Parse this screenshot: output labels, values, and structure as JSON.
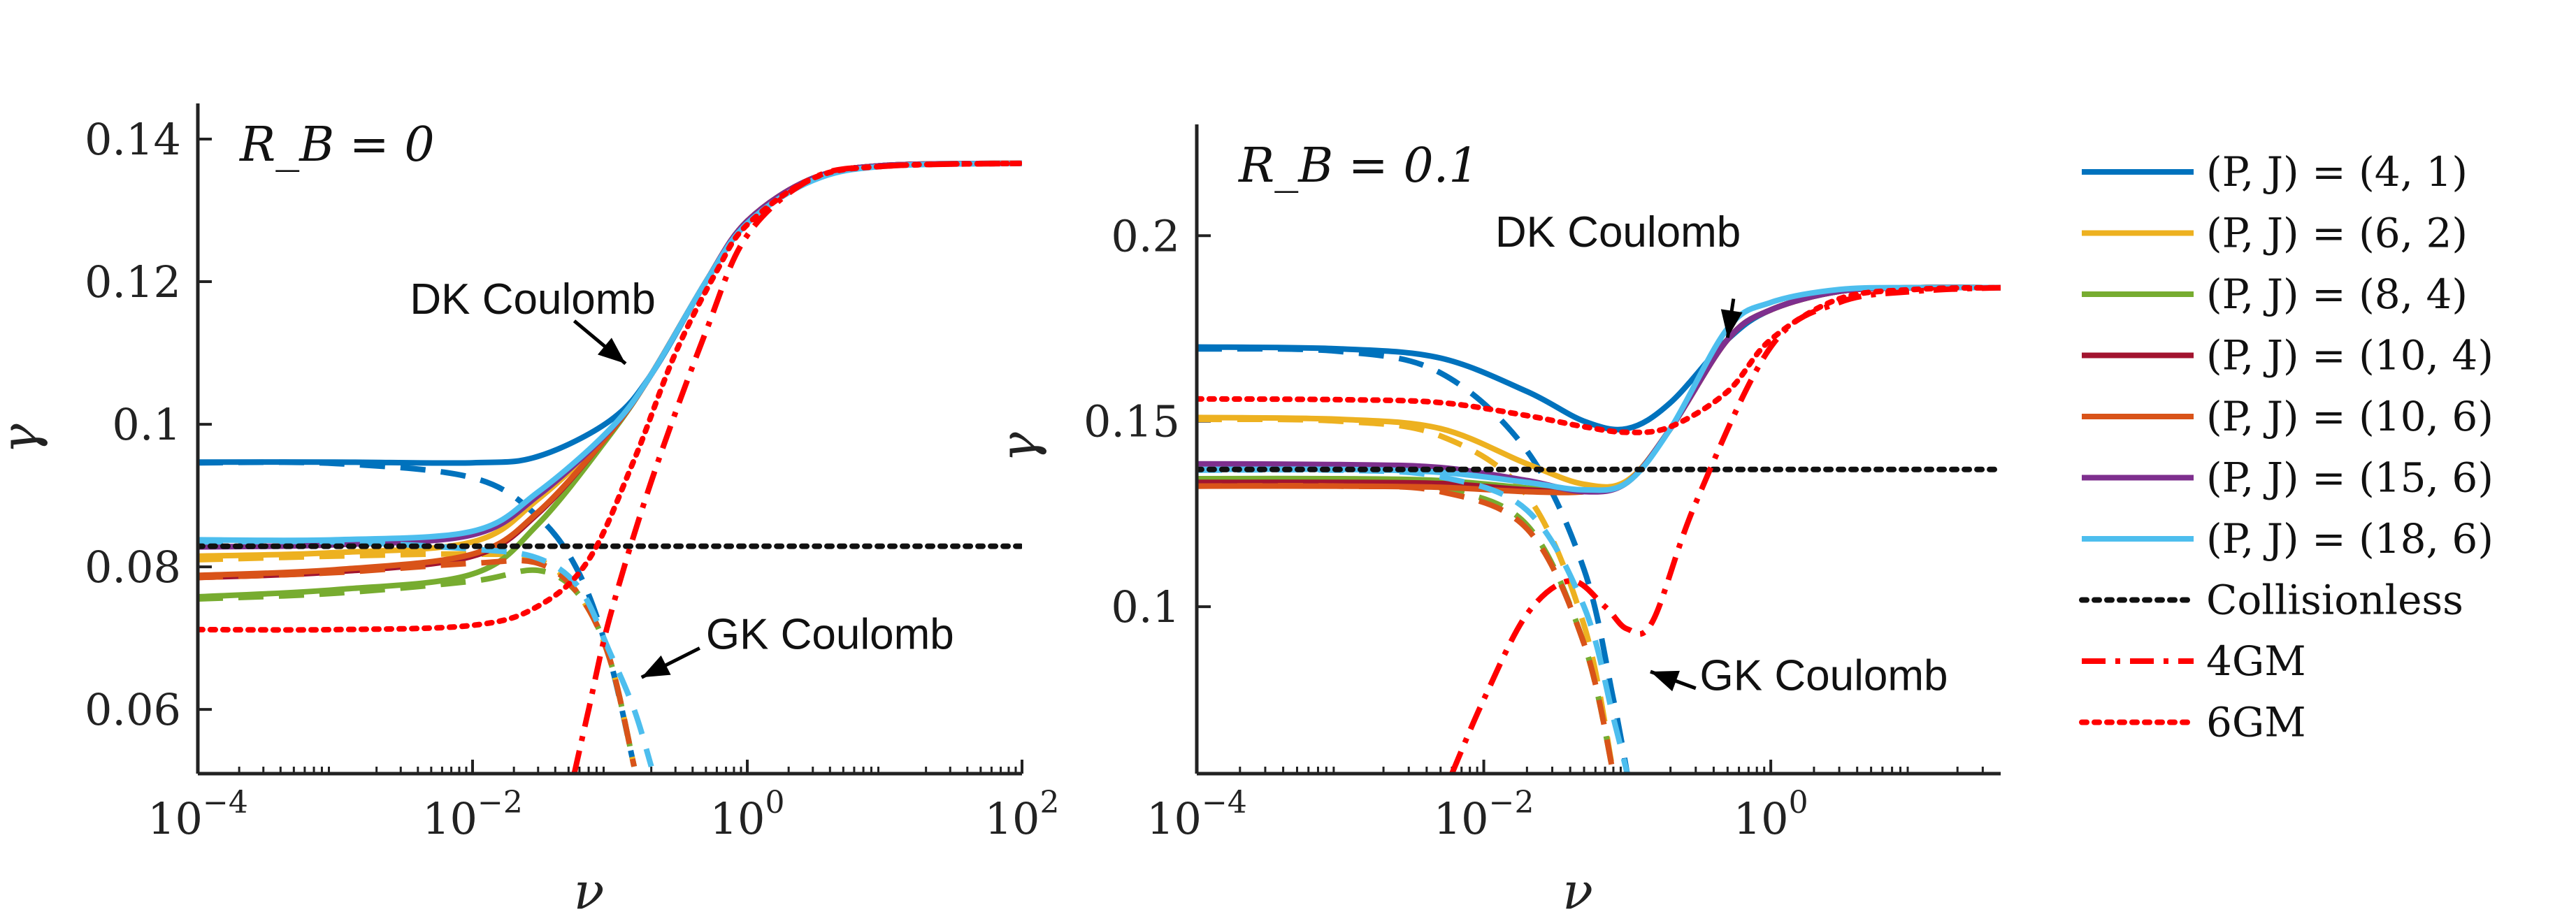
{
  "chart_data": [
    {
      "type": "line",
      "title": "R_B = 0",
      "xlabel": "ν",
      "ylabel": "γ",
      "xscale": "log",
      "xlim": [
        0.0001,
        100
      ],
      "ylim": [
        0.051,
        0.145
      ],
      "xticks": [
        {
          "value": 0.0001,
          "base": "10",
          "exp": "−4"
        },
        {
          "value": 0.01,
          "base": "10",
          "exp": "−2"
        },
        {
          "value": 1,
          "base": "10",
          "exp": "0"
        },
        {
          "value": 100,
          "base": "10",
          "exp": "2"
        }
      ],
      "yticks": [
        {
          "value": 0.06,
          "label": "0.06"
        },
        {
          "value": 0.08,
          "label": "0.08"
        },
        {
          "value": 0.1,
          "label": "0.1"
        },
        {
          "value": 0.12,
          "label": "0.12"
        },
        {
          "value": 0.14,
          "label": "0.14"
        }
      ],
      "annotations": [
        {
          "text": "DK Coulomb",
          "at_x": 0.0035,
          "at_y": 0.1155,
          "arrow_from": [
            0.055,
            0.1145
          ],
          "arrow_to": [
            0.13,
            0.1085
          ]
        },
        {
          "text": "GK Coulomb",
          "at_x": 0.5,
          "at_y": 0.0685,
          "arrow_from": [
            0.45,
            0.0686
          ],
          "arrow_to": [
            0.17,
            0.0645
          ]
        }
      ],
      "series": [
        {
          "name": "(P,J)=(4,1)",
          "color": "#0072BD",
          "style": "solid",
          "x": [
            0.0001,
            0.001,
            0.01,
            0.03,
            0.1,
            0.2,
            0.5,
            1,
            3,
            10,
            100
          ],
          "y": [
            0.0947,
            0.0947,
            0.0946,
            0.0955,
            0.1005,
            0.107,
            0.12,
            0.1285,
            0.1345,
            0.1363,
            0.1366
          ]
        },
        {
          "name": "(P,J)=(4,1) GK",
          "color": "#0072BD",
          "style": "dashed",
          "x": [
            0.0001,
            0.001,
            0.01,
            0.03,
            0.06,
            0.1,
            0.15
          ],
          "y": [
            0.0946,
            0.0945,
            0.0925,
            0.087,
            0.079,
            0.067,
            0.052
          ]
        },
        {
          "name": "(P,J)=(6,2)",
          "color": "#EDB120",
          "style": "solid",
          "x": [
            0.0001,
            0.001,
            0.01,
            0.03,
            0.1,
            0.2,
            0.5,
            1,
            3,
            10,
            100
          ],
          "y": [
            0.0815,
            0.082,
            0.0835,
            0.0895,
            0.099,
            0.107,
            0.12,
            0.1285,
            0.1345,
            0.1363,
            0.1366
          ]
        },
        {
          "name": "(P,J)=(6,2) GK",
          "color": "#EDB120",
          "style": "dashed",
          "x": [
            0.0001,
            0.001,
            0.01,
            0.03,
            0.06,
            0.1,
            0.15
          ],
          "y": [
            0.081,
            0.0815,
            0.0818,
            0.081,
            0.076,
            0.067,
            0.052
          ]
        },
        {
          "name": "(P,J)=(8,4)",
          "color": "#77AC30",
          "style": "solid",
          "x": [
            0.0001,
            0.001,
            0.01,
            0.03,
            0.1,
            0.2,
            0.5,
            1,
            3,
            10,
            100
          ],
          "y": [
            0.0758,
            0.0768,
            0.079,
            0.086,
            0.0985,
            0.107,
            0.12,
            0.1285,
            0.1345,
            0.1363,
            0.1366
          ]
        },
        {
          "name": "(P,J)=(8,4) GK",
          "color": "#77AC30",
          "style": "dashed",
          "x": [
            0.0001,
            0.001,
            0.01,
            0.03,
            0.06,
            0.1,
            0.15
          ],
          "y": [
            0.0755,
            0.0763,
            0.078,
            0.0795,
            0.076,
            0.067,
            0.052
          ]
        },
        {
          "name": "(P,J)=(10,4)",
          "color": "#A2142F",
          "style": "solid",
          "x": [
            0.0001,
            0.001,
            0.01,
            0.03,
            0.1,
            0.2,
            0.5,
            1,
            3,
            10,
            100
          ],
          "y": [
            0.0785,
            0.0793,
            0.0815,
            0.0875,
            0.0988,
            0.107,
            0.12,
            0.1285,
            0.1345,
            0.1363,
            0.1366
          ]
        },
        {
          "name": "(P,J)=(10,6)",
          "color": "#D95319",
          "style": "solid",
          "x": [
            0.0001,
            0.001,
            0.01,
            0.03,
            0.1,
            0.2,
            0.5,
            1,
            3,
            10,
            100
          ],
          "y": [
            0.0788,
            0.0796,
            0.0818,
            0.0877,
            0.0988,
            0.107,
            0.12,
            0.1285,
            0.1345,
            0.1363,
            0.1366
          ]
        },
        {
          "name": "(P,J)=(10,6) GK",
          "color": "#D95319",
          "style": "dashed",
          "x": [
            0.0001,
            0.001,
            0.01,
            0.03,
            0.06,
            0.1,
            0.15
          ],
          "y": [
            0.0785,
            0.0792,
            0.0805,
            0.0805,
            0.076,
            0.067,
            0.052
          ]
        },
        {
          "name": "(P,J)=(15,6)",
          "color": "#7E2F8E",
          "style": "solid",
          "x": [
            0.0001,
            0.001,
            0.01,
            0.03,
            0.1,
            0.2,
            0.5,
            1,
            3,
            10,
            100
          ],
          "y": [
            0.0828,
            0.0831,
            0.0845,
            0.09,
            0.0992,
            0.107,
            0.12,
            0.1285,
            0.1345,
            0.1363,
            0.1366
          ]
        },
        {
          "name": "(P,J)=(18,6)",
          "color": "#4DBEEE",
          "style": "solid",
          "x": [
            0.0001,
            0.001,
            0.01,
            0.03,
            0.1,
            0.2,
            0.5,
            1,
            3,
            10,
            100
          ],
          "y": [
            0.0838,
            0.0838,
            0.085,
            0.0905,
            0.0993,
            0.107,
            0.12,
            0.1282,
            0.1342,
            0.1362,
            0.1366
          ]
        },
        {
          "name": "(P,J)=(18,6) GK",
          "color": "#4DBEEE",
          "style": "dashed",
          "x": [
            0.0001,
            0.001,
            0.01,
            0.03,
            0.06,
            0.1,
            0.15,
            0.2
          ],
          "y": [
            0.0835,
            0.0835,
            0.0825,
            0.0812,
            0.077,
            0.068,
            0.06,
            0.052
          ]
        },
        {
          "name": "Collisionless",
          "color": "#111111",
          "style": "dotted",
          "x": [
            0.0001,
            100
          ],
          "y": [
            0.0829,
            0.0829
          ]
        },
        {
          "name": "4GM",
          "color": "#FF0000",
          "style": "dashdot",
          "x": [
            0.055,
            0.07,
            0.1,
            0.2,
            0.5,
            1,
            3,
            10,
            100
          ],
          "y": [
            0.051,
            0.06,
            0.073,
            0.092,
            0.113,
            0.1265,
            0.1345,
            0.1362,
            0.1366
          ]
        },
        {
          "name": "6GM",
          "color": "#FF0000",
          "style": "dotted",
          "x": [
            0.0001,
            0.001,
            0.01,
            0.03,
            0.07,
            0.15,
            0.3,
            0.6,
            1,
            3,
            10,
            100
          ],
          "y": [
            0.0712,
            0.0712,
            0.0718,
            0.0745,
            0.081,
            0.095,
            0.11,
            0.1215,
            0.128,
            0.1345,
            0.1362,
            0.1366
          ]
        }
      ]
    },
    {
      "type": "line",
      "title": "R_B = 0.1",
      "xlabel": "ν",
      "ylabel": "γ",
      "xscale": "log",
      "xlim": [
        0.0001,
        40
      ],
      "ylim": [
        0.055,
        0.23
      ],
      "xticks": [
        {
          "value": 0.0001,
          "base": "10",
          "exp": "−4"
        },
        {
          "value": 0.01,
          "base": "10",
          "exp": "−2"
        },
        {
          "value": 1,
          "base": "10",
          "exp": "0"
        }
      ],
      "yticks": [
        {
          "value": 0.1,
          "label": "0.1"
        },
        {
          "value": 0.15,
          "label": "0.15"
        },
        {
          "value": 0.2,
          "label": "0.2"
        }
      ],
      "annotations": [
        {
          "text": "DK Coulomb",
          "at_x": 0.012,
          "at_y": 0.197,
          "arrow_from": [
            0.55,
            0.183
          ],
          "arrow_to": [
            0.5,
            0.1725
          ]
        },
        {
          "text": "GK Coulomb",
          "at_x": 0.32,
          "at_y": 0.0775,
          "arrow_from": [
            0.3,
            0.078
          ],
          "arrow_to": [
            0.145,
            0.0825
          ]
        }
      ],
      "series": [
        {
          "name": "(P,J)=(4,1)",
          "color": "#0072BD",
          "style": "solid",
          "x": [
            0.0001,
            0.001,
            0.005,
            0.02,
            0.05,
            0.1,
            0.2,
            0.5,
            1,
            3,
            10,
            40
          ],
          "y": [
            0.17,
            0.1695,
            0.167,
            0.158,
            0.15,
            0.148,
            0.155,
            0.172,
            0.18,
            0.185,
            0.186,
            0.186
          ]
        },
        {
          "name": "(P,J)=(4,1) GK",
          "color": "#0072BD",
          "style": "dashed",
          "x": [
            0.0001,
            0.001,
            0.005,
            0.02,
            0.05,
            0.08,
            0.1
          ],
          "y": [
            0.1695,
            0.1688,
            0.163,
            0.142,
            0.11,
            0.075,
            0.055
          ]
        },
        {
          "name": "(P,J)=(6,2)",
          "color": "#EDB120",
          "style": "solid",
          "x": [
            0.0001,
            0.001,
            0.005,
            0.02,
            0.05,
            0.1,
            0.2,
            0.5,
            1,
            3,
            10,
            40
          ],
          "y": [
            0.151,
            0.1505,
            0.148,
            0.1385,
            0.133,
            0.134,
            0.148,
            0.172,
            0.18,
            0.185,
            0.186,
            0.186
          ]
        },
        {
          "name": "(P,J)=(6,2) GK",
          "color": "#EDB120",
          "style": "dashed",
          "x": [
            0.0001,
            0.001,
            0.005,
            0.02,
            0.05,
            0.08
          ],
          "y": [
            0.1505,
            0.15,
            0.146,
            0.13,
            0.095,
            0.055
          ]
        },
        {
          "name": "(P,J)=(8,4)",
          "color": "#77AC30",
          "style": "solid",
          "x": [
            0.0001,
            0.001,
            0.005,
            0.02,
            0.05,
            0.1,
            0.2,
            0.5,
            1,
            3,
            10,
            40
          ],
          "y": [
            0.1345,
            0.1345,
            0.134,
            0.132,
            0.131,
            0.1335,
            0.148,
            0.172,
            0.18,
            0.185,
            0.186,
            0.186
          ]
        },
        {
          "name": "(P,J)=(8,4) GK",
          "color": "#77AC30",
          "style": "dashed",
          "x": [
            0.0001,
            0.001,
            0.005,
            0.02,
            0.05,
            0.08
          ],
          "y": [
            0.134,
            0.134,
            0.132,
            0.122,
            0.09,
            0.055
          ]
        },
        {
          "name": "(P,J)=(10,4)",
          "color": "#A2142F",
          "style": "solid",
          "x": [
            0.0001,
            0.001,
            0.005,
            0.02,
            0.05,
            0.1,
            0.2,
            0.5,
            1,
            3,
            10,
            40
          ],
          "y": [
            0.1335,
            0.1335,
            0.1332,
            0.1315,
            0.131,
            0.1335,
            0.148,
            0.172,
            0.18,
            0.185,
            0.186,
            0.186
          ]
        },
        {
          "name": "(P,J)=(10,6)",
          "color": "#D95319",
          "style": "solid",
          "x": [
            0.0001,
            0.001,
            0.005,
            0.02,
            0.05,
            0.1,
            0.2,
            0.5,
            1,
            3,
            10,
            40
          ],
          "y": [
            0.1325,
            0.1325,
            0.1322,
            0.131,
            0.131,
            0.1335,
            0.148,
            0.172,
            0.18,
            0.185,
            0.186,
            0.186
          ]
        },
        {
          "name": "(P,J)=(10,6) GK",
          "color": "#D95319",
          "style": "dashed",
          "x": [
            0.0001,
            0.001,
            0.005,
            0.02,
            0.05,
            0.08
          ],
          "y": [
            0.1325,
            0.1325,
            0.131,
            0.121,
            0.09,
            0.055
          ]
        },
        {
          "name": "(P,J)=(15,6)",
          "color": "#7E2F8E",
          "style": "solid",
          "x": [
            0.0001,
            0.001,
            0.005,
            0.02,
            0.05,
            0.1,
            0.2,
            0.5,
            1,
            3,
            10,
            40
          ],
          "y": [
            0.1385,
            0.1383,
            0.1375,
            0.134,
            0.131,
            0.1335,
            0.148,
            0.172,
            0.18,
            0.185,
            0.186,
            0.186
          ]
        },
        {
          "name": "(P,J)=(18,6)",
          "color": "#4DBEEE",
          "style": "solid",
          "x": [
            0.0001,
            0.001,
            0.005,
            0.02,
            0.05,
            0.1,
            0.2,
            0.5,
            1,
            3,
            10,
            40
          ],
          "y": [
            0.137,
            0.137,
            0.1362,
            0.1335,
            0.1315,
            0.1335,
            0.148,
            0.175,
            0.182,
            0.1855,
            0.186,
            0.186
          ]
        },
        {
          "name": "(P,J)=(18,6) GK",
          "color": "#4DBEEE",
          "style": "dashed",
          "x": [
            0.0001,
            0.001,
            0.005,
            0.02,
            0.05,
            0.08,
            0.1
          ],
          "y": [
            0.1368,
            0.1368,
            0.135,
            0.126,
            0.1,
            0.07,
            0.055
          ]
        },
        {
          "name": "Collisionless",
          "color": "#111111",
          "style": "dotted",
          "x": [
            0.0001,
            40
          ],
          "y": [
            0.137,
            0.137
          ]
        },
        {
          "name": "4GM",
          "color": "#FF0000",
          "style": "dashdot",
          "x": [
            0.006,
            0.01,
            0.02,
            0.04,
            0.07,
            0.1,
            0.15,
            0.3,
            1,
            3,
            10,
            40
          ],
          "y": [
            0.055,
            0.075,
            0.098,
            0.107,
            0.1,
            0.094,
            0.096,
            0.128,
            0.17,
            0.182,
            0.185,
            0.186
          ]
        },
        {
          "name": "6GM",
          "color": "#FF0000",
          "style": "dotted",
          "x": [
            0.0001,
            0.001,
            0.005,
            0.02,
            0.05,
            0.1,
            0.2,
            0.5,
            1,
            3,
            10,
            40
          ],
          "y": [
            0.156,
            0.1558,
            0.155,
            0.1515,
            0.1485,
            0.147,
            0.1485,
            0.158,
            0.172,
            0.183,
            0.1855,
            0.186
          ]
        }
      ]
    }
  ],
  "legend": {
    "items": [
      {
        "prefix": "(P, J) = ",
        "value": "(4, 1)",
        "color": "#0072BD",
        "style": "solid"
      },
      {
        "prefix": "(P, J) = ",
        "value": "(6, 2)",
        "color": "#EDB120",
        "style": "solid"
      },
      {
        "prefix": "(P, J) = ",
        "value": "(8, 4)",
        "color": "#77AC30",
        "style": "solid"
      },
      {
        "prefix": "(P, J) = ",
        "value": "(10, 4)",
        "color": "#A2142F",
        "style": "solid"
      },
      {
        "prefix": "(P, J) = ",
        "value": "(10, 6)",
        "color": "#D95319",
        "style": "solid"
      },
      {
        "prefix": "(P, J) = ",
        "value": "(15, 6)",
        "color": "#7E2F8E",
        "style": "solid"
      },
      {
        "prefix": "(P, J) = ",
        "value": "(18, 6)",
        "color": "#4DBEEE",
        "style": "solid"
      },
      {
        "prefix": "",
        "value": "Collisionless",
        "color": "#111111",
        "style": "dotted"
      },
      {
        "prefix": "",
        "value": "4GM",
        "color": "#FF0000",
        "style": "dashdot"
      },
      {
        "prefix": "",
        "value": "6GM",
        "color": "#FF0000",
        "style": "dotted"
      }
    ]
  }
}
